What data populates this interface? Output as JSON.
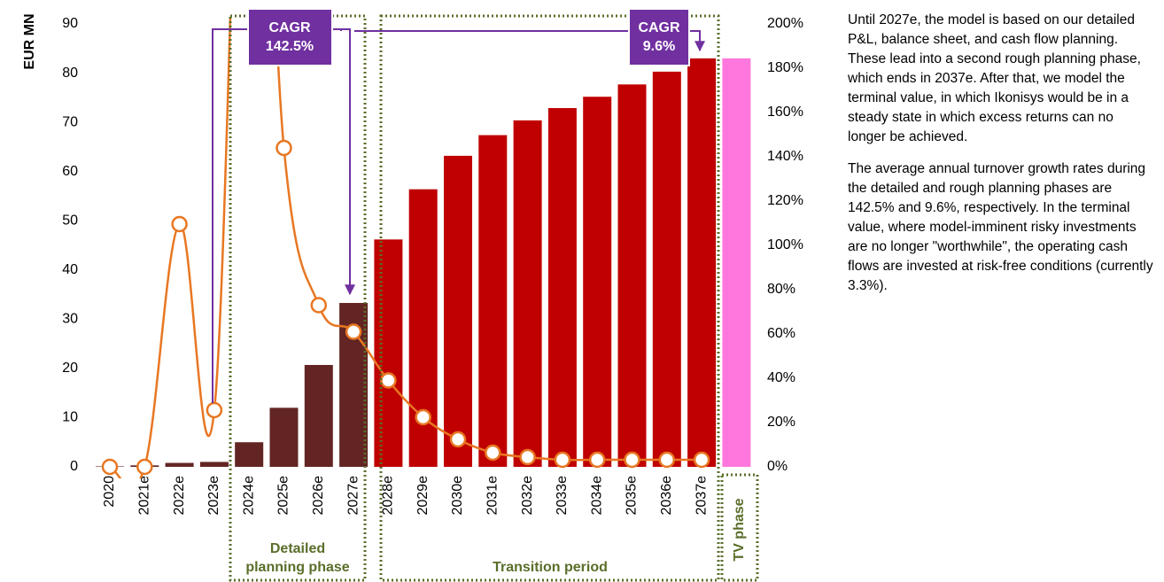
{
  "chart_data": {
    "type": "bar_line",
    "y_label": "EUR MN",
    "categories": [
      "2020",
      "2021e",
      "2022e",
      "2023e",
      "2024e",
      "2025e",
      "2026e",
      "2027e",
      "2028e",
      "2029e",
      "2030e",
      "2031e",
      "2032e",
      "2033e",
      "2034e",
      "2035e",
      "2036e",
      "2037e",
      null
    ],
    "series": [
      {
        "type": "bar",
        "values": [
          0.1,
          0.3,
          0.8,
          1.0,
          5.0,
          12.0,
          20.7,
          33.3,
          46.2,
          56.4,
          63.2,
          67.4,
          70.4,
          72.9,
          75.2,
          77.7,
          80.3,
          83.0,
          83.0
        ],
        "colors": [
          "#632523",
          "#632523",
          "#632523",
          "#632523",
          "#632523",
          "#632523",
          "#632523",
          "#632523",
          "#c00000",
          "#c00000",
          "#c00000",
          "#c00000",
          "#c00000",
          "#c00000",
          "#c00000",
          "#c00000",
          "#c00000",
          "#c00000",
          "#ff77dd"
        ]
      },
      {
        "type": "line",
        "axis": "y2",
        "color": "#e87722",
        "values": [
          0,
          0,
          109.6,
          25.6,
          400,
          144,
          73,
          61,
          39,
          22.4,
          12.4,
          6.4,
          4.4,
          3.2,
          3.2,
          3.2,
          3.2,
          3.2,
          null
        ]
      }
    ],
    "ylim": [
      0,
      90
    ],
    "yticks": [
      0,
      10,
      20,
      30,
      40,
      50,
      60,
      70,
      80,
      90
    ],
    "y2lim": [
      0,
      200
    ],
    "y2ticks": [
      {
        "value": 0,
        "label": "0%"
      },
      {
        "value": 20,
        "label": "20%"
      },
      {
        "value": 40,
        "label": "40%"
      },
      {
        "value": 60,
        "label": "60%"
      },
      {
        "value": 80,
        "label": "80%"
      },
      {
        "value": 100,
        "label": "100%"
      },
      {
        "value": 120,
        "label": "120%"
      },
      {
        "value": 140,
        "label": "140%"
      },
      {
        "value": 160,
        "label": "160%"
      },
      {
        "value": 180,
        "label": "180%"
      },
      {
        "value": 200,
        "label": "200%"
      }
    ],
    "annotations": {
      "cagr_label_1": "CAGR",
      "cagr_value_1": "142.5%",
      "cagr_label_2": "CAGR",
      "cagr_value_2": "9.6%",
      "phase_detailed_1": "Detailed",
      "phase_detailed_2": "planning phase",
      "phase_transition": "Transition period",
      "phase_tv": "TV phase"
    }
  },
  "side_text": [
    "Until 2027e, the model is based on our detailed P&L, balance sheet, and cash flow planning. These lead into a second rough planning phase, which ends in 2037e. After that, we model the terminal value, in which Ikonisys would be in a steady state in which excess returns can no longer be achieved.",
    "The average annual turnover growth rates during the detailed and rough planning phases are 142.5% and 9.6%, respectively. In the terminal value, where model-imminent risky investments are no longer \"worthwhile\", the operating cash flows are invested at risk-free conditions (currently 3.3%)."
  ]
}
